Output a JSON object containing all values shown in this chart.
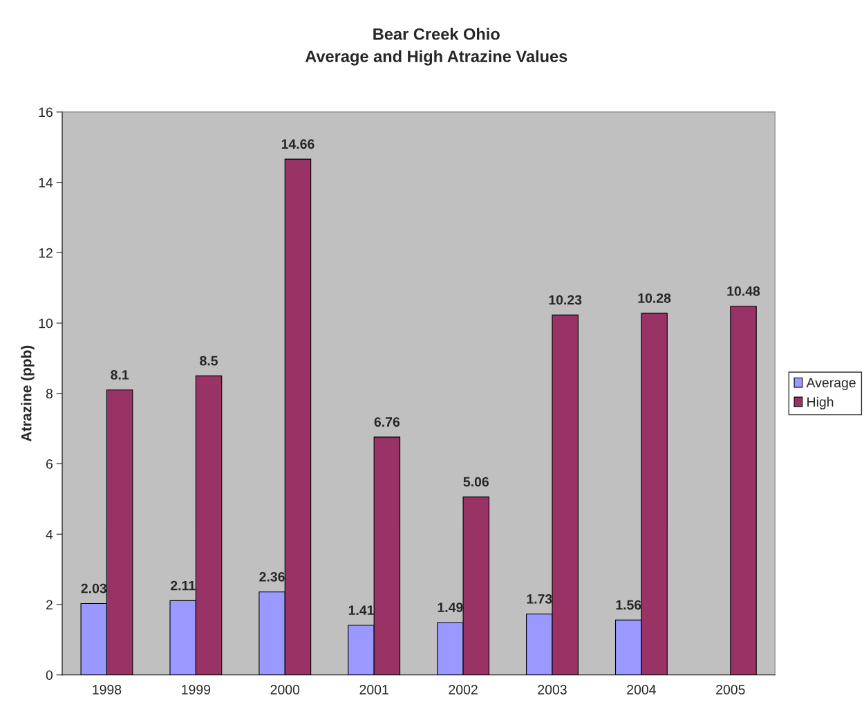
{
  "chart_data": {
    "type": "bar",
    "title": "Bear Creek Ohio\nAverage and High Atrazine Values",
    "ylabel": "Atrazine (ppb)",
    "categories": [
      "1998",
      "1999",
      "2000",
      "2001",
      "2002",
      "2003",
      "2004",
      "2005"
    ],
    "series": [
      {
        "name": "Average",
        "color": "#9999ff",
        "values": [
          2.03,
          2.11,
          2.36,
          1.41,
          1.49,
          1.73,
          1.56,
          null
        ]
      },
      {
        "name": "High",
        "color": "#993366",
        "values": [
          8.1,
          8.5,
          14.66,
          6.76,
          5.06,
          10.23,
          10.28,
          10.48
        ]
      }
    ],
    "ylim": [
      0,
      16
    ],
    "yticks": [
      0,
      2,
      4,
      6,
      8,
      10,
      12,
      14,
      16
    ],
    "grid": false,
    "legend": "right",
    "data_labels": true
  }
}
